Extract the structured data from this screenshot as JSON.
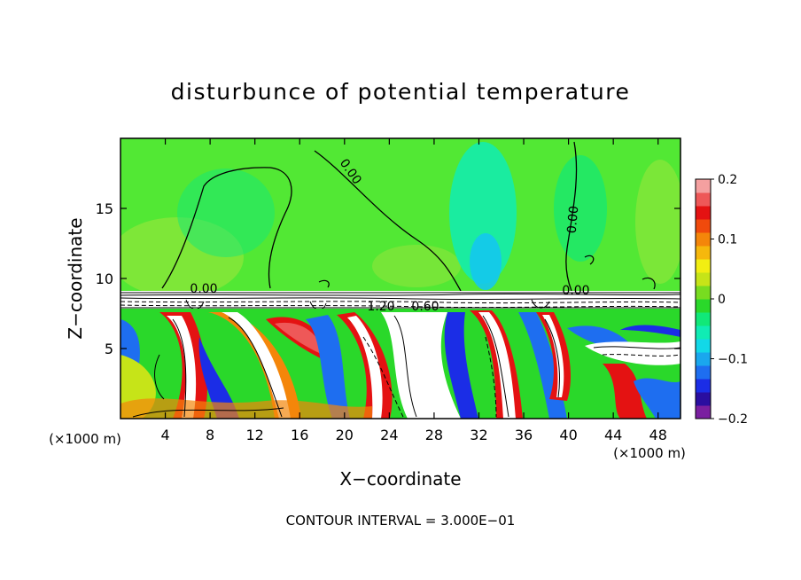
{
  "chart_data": {
    "type": "heatmap",
    "title": "disturbunce of potential temperature",
    "xlabel": "X−coordinate",
    "ylabel": "Z−coordinate",
    "x_unit_left": "(×1000 m)",
    "x_unit_right": "(×1000 m)",
    "xlim": [
      0,
      50
    ],
    "ylim": [
      0,
      20
    ],
    "x_ticks": [
      4,
      8,
      12,
      16,
      20,
      24,
      28,
      32,
      36,
      40,
      44,
      48
    ],
    "y_ticks": [
      5,
      10,
      15
    ],
    "contour_labels": [
      "0.00",
      "0.00",
      "0.00",
      "0.00",
      "1.20",
      "0.60"
    ],
    "footer": "CONTOUR INTERVAL = 3.000E−01",
    "colorbar": {
      "min": -0.2,
      "max": 0.2,
      "ticks": [
        "0.2",
        "0.1",
        "0",
        "−0.1",
        "−0.2"
      ],
      "tick_values": [
        0.2,
        0.1,
        0,
        -0.1,
        -0.2
      ],
      "colors": [
        "#7a1fa0",
        "#2a0ea0",
        "#1b2de6",
        "#1e6ef0",
        "#1aa7ee",
        "#12d8e8",
        "#10ecb4",
        "#11e878",
        "#2ad82a",
        "#78dc20",
        "#c6e418",
        "#f2ee12",
        "#f6b80c",
        "#f4860a",
        "#f04a0c",
        "#e41212",
        "#ee5858",
        "#f4a0a0"
      ]
    },
    "grid": false
  },
  "colors": {
    "upper_layer": "#52e834",
    "upper_light": "#86e63a",
    "cool_patch": "#10ecb4",
    "cold_core": "#14c8ee"
  }
}
